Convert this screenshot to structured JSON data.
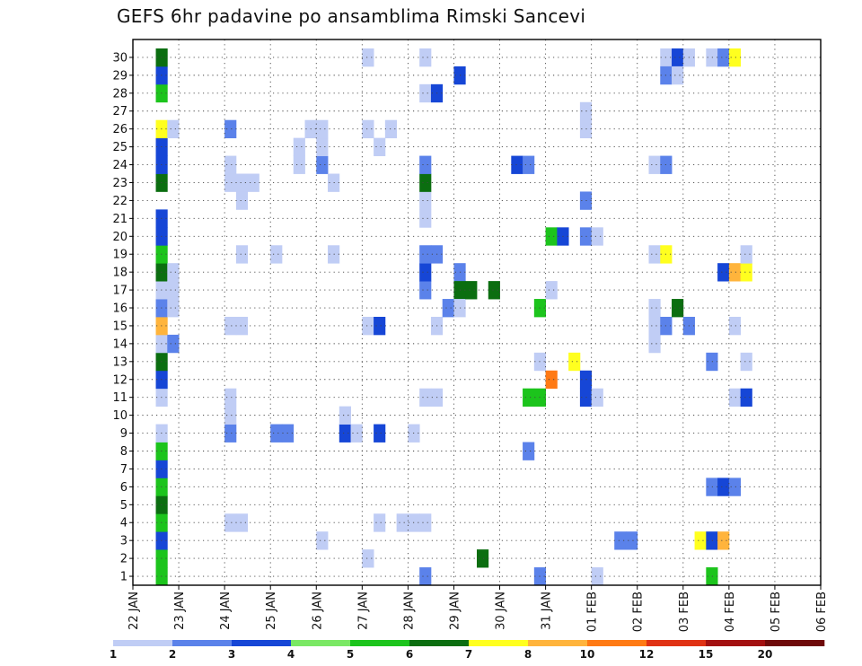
{
  "chart_data": {
    "type": "heatmap",
    "title": "GEFS 6hr padavine po ansamblima Rimski Sancevi",
    "x_tick_labels": [
      "22 JAN",
      "23 JAN",
      "24 JAN",
      "25 JAN",
      "26 JAN",
      "27 JAN",
      "28 JAN",
      "29 JAN",
      "30 JAN",
      "31 JAN",
      "01 FEB",
      "02 FEB",
      "03 FEB",
      "04 FEB",
      "05 FEB",
      "06 FEB"
    ],
    "y_tick_labels": [
      "1",
      "2",
      "3",
      "4",
      "5",
      "6",
      "7",
      "8",
      "9",
      "10",
      "11",
      "12",
      "13",
      "14",
      "15",
      "16",
      "17",
      "18",
      "19",
      "20",
      "21",
      "22",
      "23",
      "24",
      "25",
      "26",
      "27",
      "28",
      "29",
      "30"
    ],
    "xlim_steps": [
      0,
      60
    ],
    "ylim": [
      0,
      30
    ],
    "grid": true,
    "colorbar": {
      "levels": [
        "1",
        "2",
        "3",
        "4",
        "5",
        "6",
        "7",
        "8",
        "10",
        "12",
        "15",
        "20"
      ],
      "colors": [
        "#c0cdf5",
        "#5b82ea",
        "#1646d6",
        "#7ae864",
        "#1cc41c",
        "#0b6e10",
        "#ffff1f",
        "#ffb43c",
        "#ff7a14",
        "#e03214",
        "#a31010",
        "#6e0a0a"
      ]
    },
    "cells": [
      [
        2,
        0,
        4
      ],
      [
        2,
        1,
        4
      ],
      [
        2,
        2,
        2
      ],
      [
        2,
        3,
        4
      ],
      [
        2,
        4,
        5
      ],
      [
        2,
        5,
        4
      ],
      [
        2,
        6,
        2
      ],
      [
        2,
        7,
        4
      ],
      [
        2,
        8,
        0
      ],
      [
        2,
        10,
        0
      ],
      [
        2,
        11,
        2
      ],
      [
        2,
        12,
        5
      ],
      [
        2,
        13,
        0
      ],
      [
        2,
        14,
        7
      ],
      [
        2,
        15,
        1
      ],
      [
        2,
        16,
        0
      ],
      [
        2,
        17,
        5
      ],
      [
        2,
        18,
        4
      ],
      [
        2,
        19,
        2
      ],
      [
        2,
        20,
        2
      ],
      [
        2,
        22,
        5
      ],
      [
        2,
        23,
        2
      ],
      [
        2,
        24,
        2
      ],
      [
        2,
        25,
        6
      ],
      [
        2,
        27,
        4
      ],
      [
        2,
        28,
        2
      ],
      [
        2,
        29,
        5
      ],
      [
        3,
        13,
        1
      ],
      [
        3,
        15,
        0
      ],
      [
        3,
        16,
        0
      ],
      [
        3,
        17,
        0
      ],
      [
        3,
        25,
        0
      ],
      [
        8,
        3,
        0
      ],
      [
        8,
        8,
        1
      ],
      [
        8,
        9,
        0
      ],
      [
        8,
        10,
        0
      ],
      [
        8,
        14,
        0
      ],
      [
        8,
        22,
        0
      ],
      [
        8,
        23,
        0
      ],
      [
        8,
        25,
        1
      ],
      [
        9,
        3,
        0
      ],
      [
        9,
        14,
        0
      ],
      [
        9,
        18,
        0
      ],
      [
        9,
        21,
        0
      ],
      [
        9,
        22,
        0
      ],
      [
        10,
        22,
        0
      ],
      [
        12,
        8,
        1
      ],
      [
        12,
        18,
        0
      ],
      [
        13,
        8,
        1
      ],
      [
        14,
        23,
        0
      ],
      [
        14,
        24,
        0
      ],
      [
        15,
        25,
        0
      ],
      [
        16,
        2,
        0
      ],
      [
        16,
        23,
        1
      ],
      [
        16,
        24,
        0
      ],
      [
        16,
        25,
        0
      ],
      [
        17,
        22,
        0
      ],
      [
        17,
        18,
        0
      ],
      [
        18,
        8,
        2
      ],
      [
        18,
        9,
        0
      ],
      [
        19,
        8,
        0
      ],
      [
        20,
        1,
        0
      ],
      [
        20,
        14,
        0
      ],
      [
        20,
        25,
        0
      ],
      [
        20,
        29,
        0
      ],
      [
        21,
        8,
        2
      ],
      [
        21,
        14,
        2
      ],
      [
        21,
        24,
        0
      ],
      [
        21,
        3,
        0
      ],
      [
        22,
        25,
        0
      ],
      [
        23,
        3,
        0
      ],
      [
        24,
        3,
        0
      ],
      [
        24,
        8,
        0
      ],
      [
        25,
        10,
        0
      ],
      [
        25,
        16,
        1
      ],
      [
        25,
        17,
        2
      ],
      [
        25,
        18,
        1
      ],
      [
        25,
        20,
        0
      ],
      [
        25,
        21,
        0
      ],
      [
        25,
        22,
        5
      ],
      [
        25,
        23,
        1
      ],
      [
        25,
        27,
        0
      ],
      [
        25,
        29,
        0
      ],
      [
        25,
        0,
        1
      ],
      [
        25,
        3,
        0
      ],
      [
        26,
        10,
        0
      ],
      [
        26,
        18,
        1
      ],
      [
        26,
        14,
        0
      ],
      [
        26,
        27,
        2
      ],
      [
        27,
        15,
        1
      ],
      [
        28,
        17,
        1
      ],
      [
        28,
        16,
        5
      ],
      [
        28,
        15,
        0
      ],
      [
        28,
        28,
        2
      ],
      [
        29,
        16,
        5
      ],
      [
        30,
        1,
        5
      ],
      [
        31,
        16,
        5
      ],
      [
        33,
        23,
        2
      ],
      [
        34,
        23,
        1
      ],
      [
        34,
        7,
        1
      ],
      [
        34,
        10,
        4
      ],
      [
        35,
        10,
        4
      ],
      [
        35,
        0,
        1
      ],
      [
        35,
        12,
        0
      ],
      [
        35,
        15,
        4
      ],
      [
        36,
        16,
        0
      ],
      [
        36,
        11,
        8
      ],
      [
        36,
        19,
        4
      ],
      [
        37,
        19,
        2
      ],
      [
        38,
        12,
        6
      ],
      [
        39,
        11,
        2
      ],
      [
        39,
        10,
        2
      ],
      [
        39,
        19,
        1
      ],
      [
        39,
        21,
        1
      ],
      [
        39,
        25,
        0
      ],
      [
        39,
        26,
        0
      ],
      [
        40,
        10,
        0
      ],
      [
        40,
        19,
        0
      ],
      [
        40,
        0,
        0
      ],
      [
        42,
        2,
        1
      ],
      [
        43,
        2,
        1
      ],
      [
        45,
        23,
        0
      ],
      [
        45,
        18,
        0
      ],
      [
        45,
        15,
        0
      ],
      [
        45,
        14,
        0
      ],
      [
        45,
        13,
        0
      ],
      [
        46,
        23,
        1
      ],
      [
        46,
        14,
        1
      ],
      [
        46,
        29,
        0
      ],
      [
        46,
        28,
        1
      ],
      [
        46,
        18,
        6
      ],
      [
        47,
        29,
        2
      ],
      [
        47,
        28,
        0
      ],
      [
        47,
        15,
        5
      ],
      [
        48,
        14,
        1
      ],
      [
        48,
        29,
        0
      ],
      [
        49,
        2,
        6
      ],
      [
        50,
        2,
        2
      ],
      [
        50,
        12,
        1
      ],
      [
        50,
        5,
        1
      ],
      [
        50,
        0,
        4
      ],
      [
        50,
        29,
        0
      ],
      [
        51,
        5,
        2
      ],
      [
        51,
        2,
        7
      ],
      [
        51,
        29,
        1
      ],
      [
        51,
        17,
        2
      ],
      [
        52,
        5,
        1
      ],
      [
        52,
        14,
        0
      ],
      [
        52,
        29,
        6
      ],
      [
        52,
        10,
        0
      ],
      [
        52,
        17,
        7
      ],
      [
        53,
        10,
        2
      ],
      [
        53,
        17,
        6
      ],
      [
        53,
        18,
        0
      ],
      [
        53,
        12,
        0
      ]
    ]
  }
}
